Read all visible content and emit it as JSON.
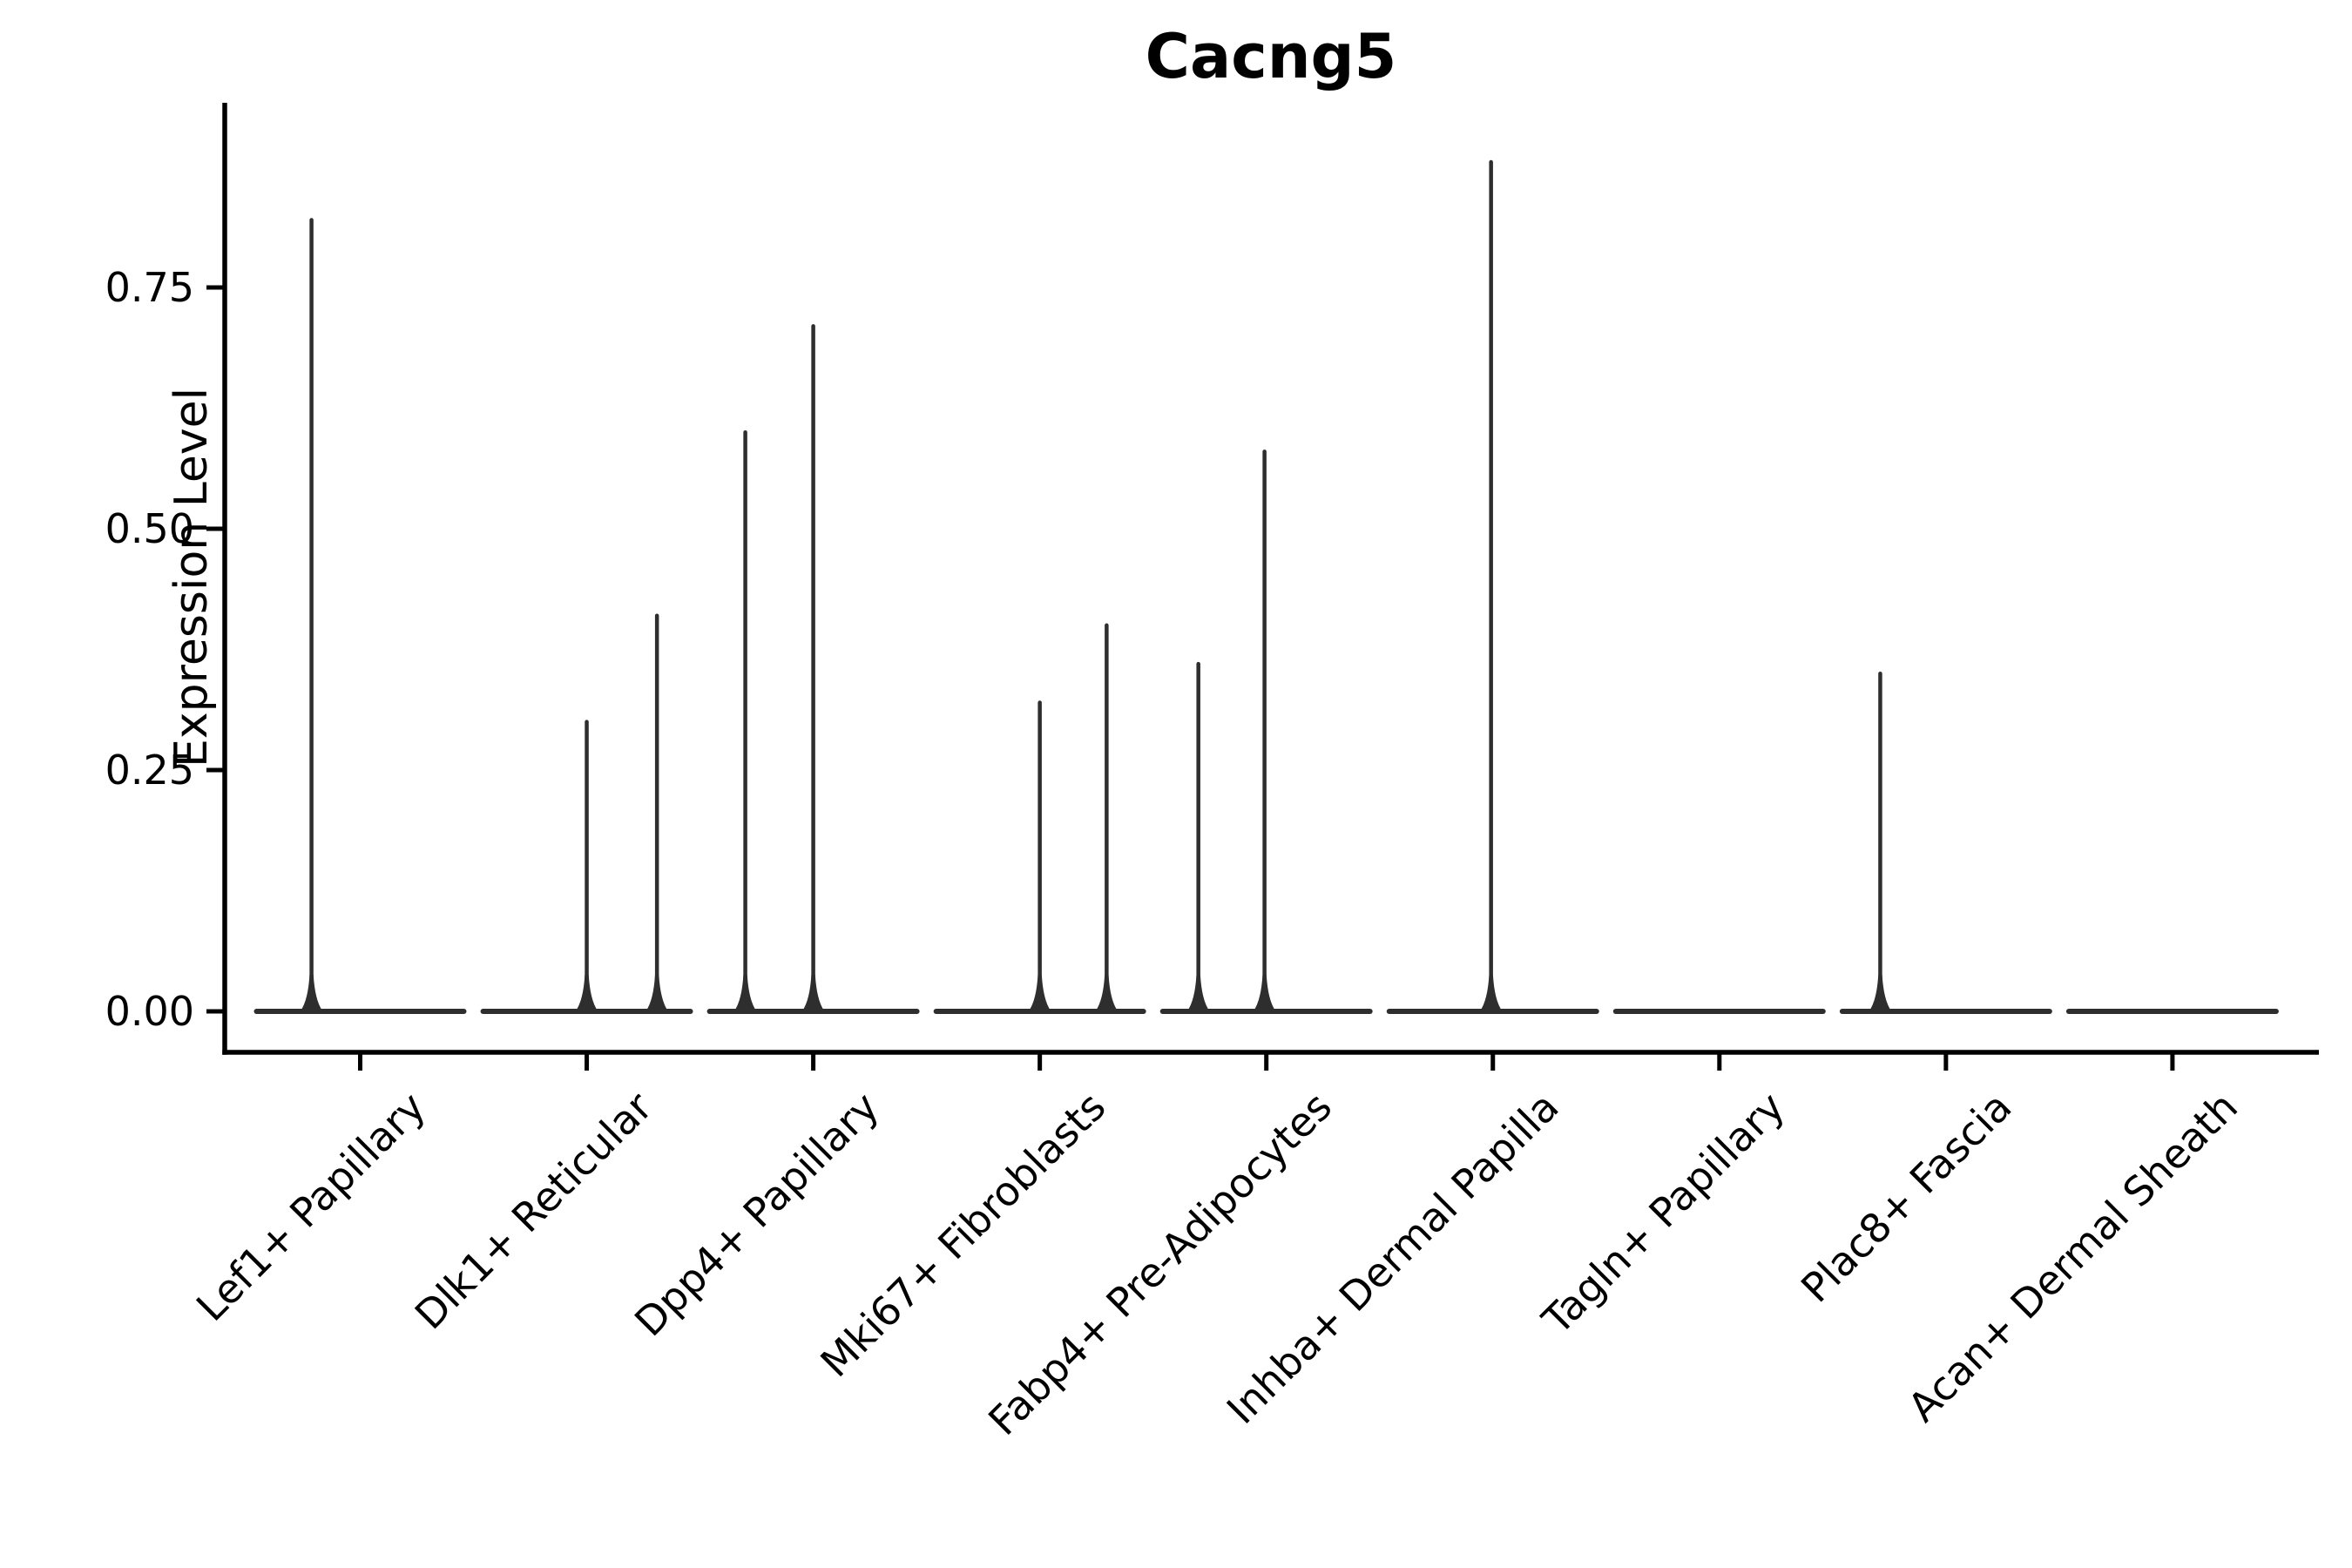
{
  "figure": {
    "title": "Cacng5",
    "ylabel": "Expression Level"
  },
  "axes": {
    "ytick_labels": [
      "0.00",
      "0.25",
      "0.50",
      "0.75"
    ],
    "ytick_values": [
      0.0,
      0.25,
      0.5,
      0.75
    ],
    "categories": [
      "Lef1+ Papillary",
      "Dlk1+ Reticular",
      "Dpp4+ Papillary",
      "Mki67+ Fibroblasts",
      "Fabp4+ Pre-Adipocytes",
      "Inhba+ Dermal Papilla",
      "Tagln+ Papillary",
      "Plac8+ Fascia",
      "Acan+ Dermal Sheath"
    ]
  },
  "colors": {
    "violin": "#2e2e2e",
    "axis": "#000000",
    "text": "#000000",
    "background": "#ffffff"
  },
  "chart_data": {
    "type": "violin",
    "title": "Cacng5",
    "xlabel": "",
    "ylabel": "Expression Level",
    "ylim": [
      -0.04,
      0.94
    ],
    "yticks": [
      0.0,
      0.25,
      0.5,
      0.75
    ],
    "grid": false,
    "legend": "none",
    "categories": [
      "Lef1+ Papillary",
      "Dlk1+ Reticular",
      "Dpp4+ Papillary",
      "Mki67+ Fibroblasts",
      "Fabp4+ Pre-Adipocytes",
      "Inhba+ Dermal Papilla",
      "Tagln+ Papillary",
      "Plac8+ Fascia",
      "Acan+ Dermal Sheath"
    ],
    "series": [
      {
        "name": "Lef1+ Papillary",
        "bulk_at_zero": true,
        "spikes": [
          {
            "value": 0.82,
            "offset_frac": -0.215
          }
        ]
      },
      {
        "name": "Dlk1+ Reticular",
        "bulk_at_zero": true,
        "spikes": [
          {
            "value": 0.3,
            "offset_frac": 0.0
          },
          {
            "value": 0.41,
            "offset_frac": 0.31
          }
        ]
      },
      {
        "name": "Dpp4+ Papillary",
        "bulk_at_zero": true,
        "spikes": [
          {
            "value": 0.6,
            "offset_frac": -0.3
          },
          {
            "value": 0.71,
            "offset_frac": 0.0
          }
        ]
      },
      {
        "name": "Mki67+ Fibroblasts",
        "bulk_at_zero": true,
        "spikes": [
          {
            "value": 0.32,
            "offset_frac": 0.0
          },
          {
            "value": 0.4,
            "offset_frac": 0.295
          }
        ]
      },
      {
        "name": "Fabp4+ Pre-Adipocytes",
        "bulk_at_zero": true,
        "spikes": [
          {
            "value": 0.36,
            "offset_frac": -0.3
          },
          {
            "value": 0.58,
            "offset_frac": -0.008
          }
        ]
      },
      {
        "name": "Inhba+ Dermal Papilla",
        "bulk_at_zero": true,
        "spikes": [
          {
            "value": 0.88,
            "offset_frac": -0.008
          }
        ]
      },
      {
        "name": "Tagln+ Papillary",
        "bulk_at_zero": true,
        "spikes": []
      },
      {
        "name": "Plac8+ Fascia",
        "bulk_at_zero": true,
        "spikes": [
          {
            "value": 0.35,
            "offset_frac": -0.29
          }
        ]
      },
      {
        "name": "Acan+ Dermal Sheath",
        "bulk_at_zero": true,
        "spikes": []
      }
    ],
    "description": "Violin plot of Cacng5 expression per fibroblast cluster: each violin is flat at expression 0 with thin density spikes at the few expressed values."
  }
}
